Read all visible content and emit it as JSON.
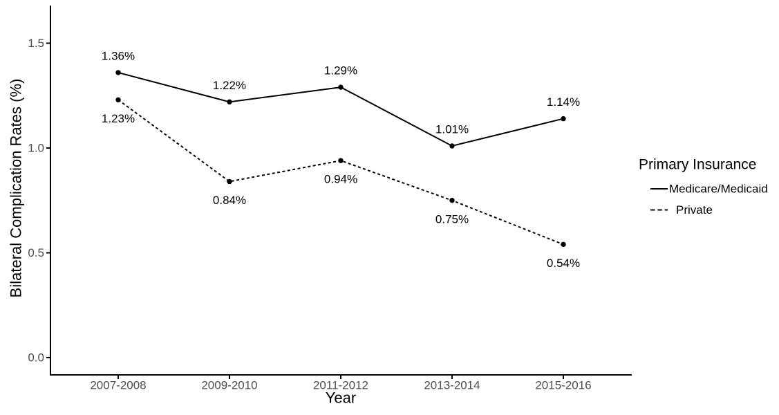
{
  "chart_data": {
    "type": "line",
    "title": "",
    "xlabel": "Year",
    "ylabel": "Bilateral Complication Rates (%)",
    "categories": [
      "2007-2008",
      "2009-2010",
      "2011-2012",
      "2013-2014",
      "2015-2016"
    ],
    "series": [
      {
        "name": "Medicare/Medicaid",
        "linetype": "solid",
        "values": [
          1.36,
          1.22,
          1.29,
          1.01,
          1.14
        ],
        "point_labels": [
          "1.36%",
          "1.22%",
          "1.29%",
          "1.01%",
          "1.14%"
        ],
        "label_position": "above"
      },
      {
        "name": "Private",
        "linetype": "dashed",
        "values": [
          1.23,
          0.84,
          0.94,
          0.75,
          0.54
        ],
        "point_labels": [
          "1.23%",
          "0.84%",
          "0.94%",
          "0.75%",
          "0.54%"
        ],
        "label_position": "below"
      }
    ],
    "y_ticks": [
      {
        "value": 0.0,
        "label": "0.0"
      },
      {
        "value": 0.5,
        "label": "0.5"
      },
      {
        "value": 1.0,
        "label": "1.0"
      },
      {
        "value": 1.5,
        "label": "1.5"
      }
    ],
    "ylim": [
      -0.08,
      1.67
    ],
    "grid": false,
    "legend": {
      "title": "Primary Insurance",
      "position": "right",
      "entries": [
        "Medicare/Medicaid",
        "Private"
      ]
    },
    "colors": {
      "series": "#000000",
      "axis": "#000000",
      "tick_label": "#4D4D4D",
      "background": "#FFFFFF"
    }
  }
}
